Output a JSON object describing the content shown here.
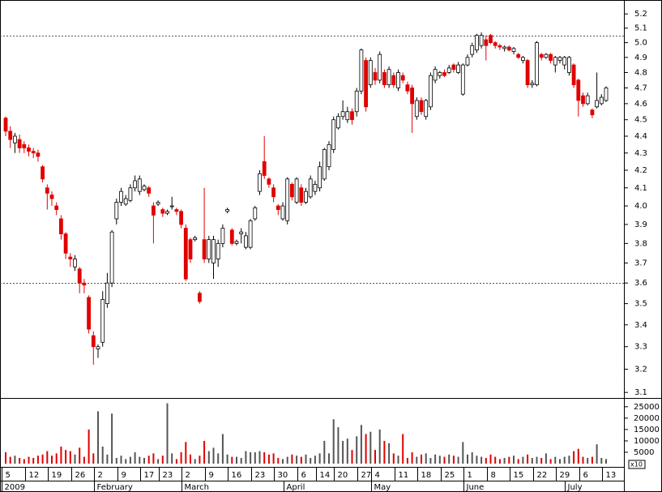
{
  "chart_data": {
    "type": "candlestick",
    "log_scale": true,
    "ylim": [
      3.08,
      5.3
    ],
    "yticks": [
      5.2,
      5.1,
      {
        "value": 5,
        "label": "5.0"
      },
      4.9,
      4.8,
      4.7,
      4.6,
      4.5,
      4.4,
      4.3,
      4.2,
      4.1,
      {
        "value": 4,
        "label": "4.0"
      },
      3.9,
      3.8,
      3.7,
      3.6,
      3.5,
      3.4,
      3.3,
      3.2,
      3.1
    ],
    "reference_lines": [
      5.05,
      3.6
    ],
    "up_color": "#ffffff",
    "down_color": "#e00000",
    "volume_up_color": "#555555",
    "volume_ylim": [
      0,
      28500
    ],
    "volume_yticks": [
      5000,
      10000,
      15000,
      20000,
      25000
    ],
    "volume_multiplier_label": "x10",
    "categories": [
      "5",
      null,
      null,
      null,
      null,
      "12",
      null,
      null,
      null,
      null,
      "19",
      null,
      null,
      null,
      null,
      "26",
      null,
      null,
      null,
      null,
      "2",
      null,
      null,
      null,
      null,
      "9",
      null,
      null,
      null,
      null,
      "17",
      null,
      null,
      null,
      "23",
      null,
      null,
      null,
      null,
      "2",
      null,
      null,
      null,
      null,
      "9",
      null,
      null,
      null,
      null,
      "16",
      null,
      null,
      null,
      null,
      "23",
      null,
      null,
      null,
      null,
      "30",
      null,
      null,
      null,
      null,
      "6",
      null,
      null,
      null,
      "14",
      null,
      null,
      null,
      "20",
      null,
      null,
      null,
      null,
      "27",
      null,
      null,
      "4",
      null,
      null,
      null,
      null,
      "11",
      null,
      null,
      null,
      null,
      "18",
      null,
      null,
      null,
      null,
      "25",
      null,
      null,
      null,
      null,
      "1",
      null,
      null,
      null,
      null,
      "8",
      null,
      null,
      null,
      null,
      "15",
      null,
      null,
      null,
      null,
      "22",
      null,
      null,
      null,
      null,
      "29",
      null,
      null,
      null,
      null,
      "6",
      null,
      null,
      null,
      null,
      "13"
    ],
    "months": [
      "2009",
      "February",
      "March",
      "April",
      "May",
      "June",
      "July"
    ],
    "month_starts": [
      0,
      20,
      39,
      61,
      80,
      100,
      122
    ],
    "open": [
      4.51,
      4.43,
      4.36,
      4.38,
      4.35,
      4.33,
      4.31,
      4.3,
      4.22,
      4.1,
      4.06,
      4.0,
      3.93,
      3.85,
      3.73,
      3.68,
      3.67,
      3.6,
      3.53,
      3.35,
      3.29,
      3.32,
      3.5,
      3.6,
      3.93,
      4.02,
      4.01,
      4.03,
      4.1,
      4.08,
      4.09,
      4.1,
      4.0,
      4.01,
      3.98,
      3.96,
      4.0,
      3.98,
      3.97,
      3.88,
      3.82,
      3.82,
      3.55,
      3.82,
      3.72,
      3.7,
      3.72,
      3.8,
      3.97,
      3.87,
      3.8,
      3.85,
      3.78,
      3.78,
      3.93,
      4.08,
      4.25,
      4.15,
      4.1,
      4.0,
      3.93,
      3.92,
      4.12,
      4.02,
      4.1,
      4.02,
      4.05,
      4.08,
      4.1,
      4.15,
      4.22,
      4.32,
      4.45,
      4.52,
      4.5,
      4.55,
      4.55,
      4.68,
      4.88,
      4.72,
      4.8,
      4.75,
      4.8,
      4.72,
      4.78,
      4.7,
      4.78,
      4.72,
      4.7,
      4.52,
      4.62,
      4.52,
      4.58,
      4.75,
      4.78,
      4.8,
      4.8,
      4.85,
      4.8,
      4.66,
      4.85,
      4.92,
      4.95,
      4.98,
      5.02,
      5.05,
      5.0,
      4.98,
      4.96,
      4.97,
      4.94,
      4.92,
      4.88,
      4.88,
      4.72,
      4.72,
      4.92,
      4.9,
      4.92,
      4.85,
      4.88,
      4.85,
      4.8,
      4.85,
      4.75,
      4.65,
      4.6,
      4.56,
      4.58,
      4.6,
      4.62
    ],
    "high": [
      4.52,
      4.46,
      4.42,
      4.41,
      4.37,
      4.35,
      4.33,
      4.32,
      4.23,
      4.12,
      4.08,
      4.02,
      3.95,
      3.86,
      3.75,
      3.74,
      3.68,
      3.62,
      3.54,
      3.37,
      3.31,
      3.56,
      3.65,
      3.87,
      4.04,
      4.1,
      4.06,
      4.12,
      4.17,
      4.17,
      4.12,
      4.11,
      4.02,
      4.03,
      3.99,
      3.98,
      4.05,
      3.99,
      3.98,
      3.9,
      3.83,
      3.84,
      3.56,
      4.1,
      3.84,
      3.84,
      3.82,
      3.9,
      3.99,
      3.88,
      3.82,
      3.88,
      3.86,
      3.93,
      4.0,
      4.2,
      4.4,
      4.16,
      4.12,
      4.01,
      4.02,
      4.16,
      4.13,
      4.16,
      4.12,
      4.1,
      4.17,
      4.14,
      4.25,
      4.33,
      4.37,
      4.52,
      4.54,
      4.62,
      4.58,
      4.57,
      4.7,
      4.96,
      4.9,
      4.9,
      4.83,
      4.94,
      4.82,
      4.84,
      4.8,
      4.82,
      4.8,
      4.74,
      4.72,
      4.64,
      4.64,
      4.63,
      4.8,
      4.84,
      4.81,
      4.82,
      4.85,
      4.86,
      4.87,
      4.86,
      4.92,
      5.0,
      5.06,
      5.07,
      5.05,
      5.06,
      5.01,
      4.99,
      4.98,
      4.98,
      4.97,
      4.93,
      4.91,
      4.89,
      4.75,
      5.01,
      4.93,
      4.93,
      4.93,
      4.91,
      4.91,
      4.91,
      4.91,
      4.86,
      4.76,
      4.67,
      4.67,
      4.57,
      4.8,
      4.66,
      4.71
    ],
    "low": [
      4.4,
      4.33,
      4.3,
      4.3,
      4.3,
      4.28,
      4.27,
      4.25,
      4.13,
      3.98,
      4.0,
      3.95,
      3.82,
      3.72,
      3.68,
      3.66,
      3.55,
      3.55,
      3.36,
      3.22,
      3.25,
      3.3,
      3.48,
      3.58,
      3.9,
      4.0,
      4.0,
      4.02,
      4.08,
      4.06,
      4.08,
      4.05,
      3.8,
      4.0,
      3.94,
      3.95,
      3.98,
      3.95,
      3.88,
      3.61,
      3.7,
      3.81,
      3.5,
      3.7,
      3.7,
      3.62,
      3.68,
      3.78,
      3.96,
      3.79,
      3.79,
      3.8,
      3.77,
      3.77,
      3.92,
      4.06,
      4.15,
      4.1,
      4.02,
      3.95,
      3.92,
      3.9,
      4.03,
      4.01,
      4.0,
      4.01,
      4.04,
      4.06,
      4.08,
      4.14,
      4.2,
      4.3,
      4.44,
      4.5,
      4.48,
      4.47,
      4.52,
      4.66,
      4.55,
      4.7,
      4.72,
      4.73,
      4.7,
      4.7,
      4.7,
      4.68,
      4.73,
      4.66,
      4.42,
      4.5,
      4.53,
      4.5,
      4.56,
      4.73,
      4.76,
      4.77,
      4.79,
      4.8,
      4.79,
      4.65,
      4.84,
      4.9,
      4.93,
      4.96,
      4.88,
      4.99,
      4.96,
      4.95,
      4.94,
      4.94,
      4.92,
      4.89,
      4.86,
      4.7,
      4.7,
      4.71,
      4.88,
      4.89,
      4.86,
      4.8,
      4.86,
      4.82,
      4.78,
      4.7,
      4.52,
      4.58,
      4.59,
      4.51,
      4.57,
      4.59,
      4.61
    ],
    "close": [
      4.43,
      4.38,
      4.4,
      4.33,
      4.33,
      4.31,
      4.3,
      4.28,
      4.15,
      4.07,
      4.04,
      3.98,
      3.85,
      3.75,
      3.72,
      3.72,
      3.6,
      3.59,
      3.38,
      3.3,
      3.3,
      3.52,
      3.6,
      3.86,
      4.02,
      4.08,
      4.04,
      4.1,
      4.14,
      4.15,
      4.11,
      4.07,
      3.95,
      4.02,
      3.96,
      3.97,
      4.0,
      3.97,
      3.9,
      3.62,
      3.72,
      3.83,
      3.51,
      3.72,
      3.82,
      3.82,
      3.8,
      3.88,
      3.98,
      3.8,
      3.81,
      3.86,
      3.84,
      3.92,
      3.99,
      4.18,
      4.17,
      4.12,
      4.05,
      3.98,
      4.0,
      4.15,
      4.05,
      4.15,
      4.02,
      4.08,
      4.15,
      4.12,
      4.22,
      4.32,
      4.35,
      4.5,
      4.52,
      4.55,
      4.55,
      4.5,
      4.68,
      4.95,
      4.58,
      4.88,
      4.75,
      4.92,
      4.72,
      4.82,
      4.72,
      4.8,
      4.75,
      4.68,
      4.6,
      4.62,
      4.55,
      4.62,
      4.78,
      4.82,
      4.8,
      4.78,
      4.83,
      4.82,
      4.85,
      4.85,
      4.9,
      4.98,
      5.05,
      5.05,
      4.98,
      5.0,
      4.98,
      4.97,
      4.97,
      4.95,
      4.96,
      4.9,
      4.9,
      4.72,
      4.73,
      5.0,
      4.9,
      4.92,
      4.88,
      4.9,
      4.9,
      4.9,
      4.9,
      4.72,
      4.62,
      4.6,
      4.65,
      4.53,
      4.62,
      4.64,
      4.7
    ],
    "volume": [
      5000,
      3000,
      3500,
      2500,
      2000,
      3000,
      2500,
      3500,
      4000,
      5500,
      3500,
      4500,
      7500,
      6000,
      5500,
      4000,
      7000,
      3000,
      15000,
      4500,
      23000,
      7500,
      4000,
      22000,
      2500,
      3500,
      2000,
      3000,
      5000,
      3000,
      2500,
      3500,
      4500,
      2000,
      3500,
      26500,
      4500,
      2000,
      5000,
      9500,
      4000,
      2000,
      3500,
      10000,
      5500,
      7000,
      4500,
      13000,
      4000,
      3000,
      3000,
      2500,
      5500,
      5000,
      5000,
      5500,
      5000,
      4000,
      4500,
      2500,
      2000,
      3000,
      4000,
      3500,
      3000,
      4000,
      2500,
      3500,
      4500,
      10000,
      4500,
      19500,
      16000,
      10000,
      11000,
      6000,
      12000,
      17000,
      13000,
      14000,
      6000,
      15000,
      10000,
      9000,
      4500,
      3500,
      13000,
      2500,
      5000,
      3000,
      4000,
      4500,
      2500,
      4000,
      3500,
      3000,
      4000,
      3500,
      3000,
      9500,
      4000,
      5000,
      3500,
      3000,
      2500,
      4000,
      3000,
      2000,
      2500,
      3000,
      3500,
      2000,
      3000,
      4000,
      2500,
      3000,
      2500,
      4500,
      2000,
      3000,
      2000,
      3000,
      3500,
      5500,
      6500,
      3000,
      2500,
      3000,
      8500,
      2500,
      2000
    ]
  }
}
